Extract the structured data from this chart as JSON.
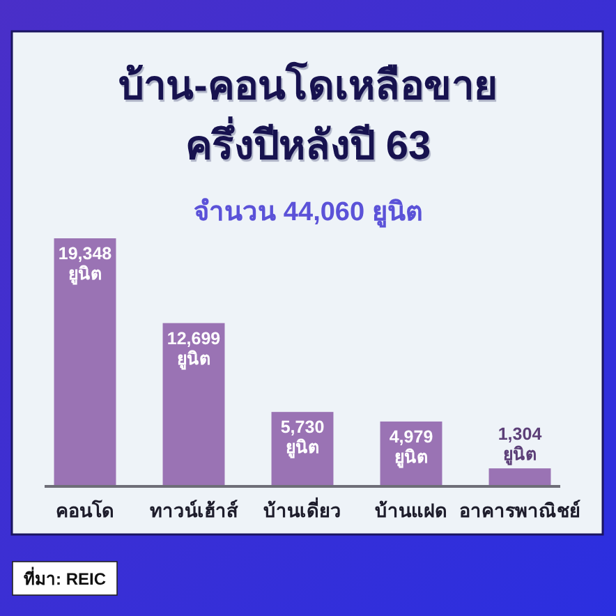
{
  "chart_data": {
    "type": "bar",
    "title": "บ้าน-คอนโดเหลือขาย ครึ่งปีหลังปี 63",
    "subtitle": "จำนวน 44,060 ยูนิต",
    "categories": [
      "คอนโด",
      "ทาวน์เฮ้าส์",
      "บ้านเดี่ยว",
      "บ้านแฝด",
      "อาคารพาณิชย์"
    ],
    "values": [
      19348,
      12699,
      5730,
      4979,
      1304
    ],
    "value_labels": [
      "19,348 ยูนิต",
      "12,699 ยูนิต",
      "5,730 ยูนิต",
      "4,979 ยูนิต",
      "1,304 ยูนิต"
    ],
    "color": "#9a73b4",
    "annotations": [
      "ที่มา: REIC"
    ]
  }
}
